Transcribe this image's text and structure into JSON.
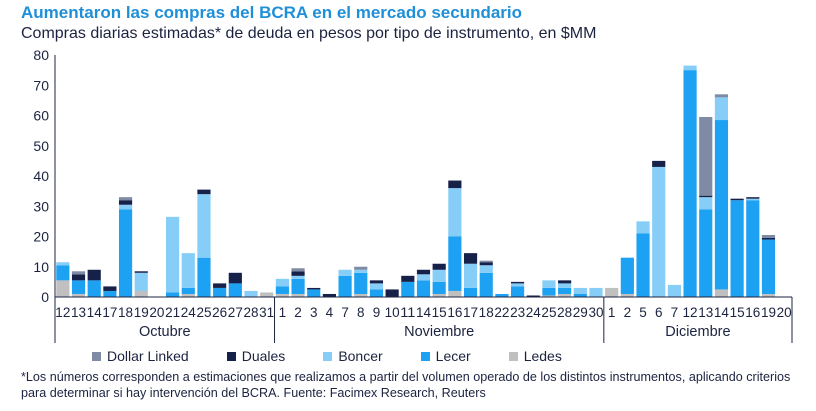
{
  "chart_data": {
    "type": "bar",
    "stacked": true,
    "title": "Aumentaron las compras del BCRA en el mercado secundario",
    "subtitle": "Compras diarias estimadas* de deuda en pesos por tipo de instrumento, en $MM",
    "ylim": [
      0,
      80
    ],
    "yticks": [
      0,
      10,
      20,
      30,
      40,
      50,
      60,
      70,
      80
    ],
    "groups": [
      {
        "label": "Octubre",
        "categories": [
          "12",
          "13",
          "14",
          "17",
          "18",
          "19",
          "20",
          "21",
          "24",
          "25",
          "26",
          "27",
          "28",
          "31"
        ]
      },
      {
        "label": "Noviembre",
        "categories": [
          "1",
          "2",
          "3",
          "4",
          "7",
          "8",
          "9",
          "10",
          "11",
          "14",
          "15",
          "16",
          "17",
          "18",
          "22",
          "23",
          "24",
          "25",
          "28",
          "29",
          "30"
        ]
      },
      {
        "label": "Diciembre",
        "categories": [
          "1",
          "2",
          "5",
          "6",
          "7",
          "12",
          "13",
          "14",
          "15",
          "16",
          "19",
          "20"
        ]
      }
    ],
    "series": [
      {
        "name": "Ledes",
        "color": "#c0c0c0",
        "values": [
          5.5,
          1,
          0,
          0,
          0,
          2,
          0,
          0,
          1,
          0,
          0,
          0,
          0,
          1.5,
          1,
          1,
          0,
          0,
          0,
          1,
          0,
          0,
          0,
          0,
          1,
          2,
          0,
          0,
          0,
          0,
          0,
          0.5,
          1,
          0,
          0,
          3,
          1,
          0,
          0,
          0,
          0,
          0,
          2.5,
          0,
          0,
          1,
          0
        ]
      },
      {
        "name": "Lecer",
        "color": "#1da1f2",
        "values": [
          5,
          4.5,
          5.5,
          2,
          29,
          0,
          0,
          1.5,
          2,
          13,
          3,
          4.5,
          0,
          0,
          2.5,
          5,
          2.5,
          0,
          7,
          7,
          2.5,
          0,
          5,
          5.5,
          4,
          18,
          3,
          8,
          1,
          3.5,
          0,
          2.5,
          2,
          1,
          0,
          0,
          12,
          21,
          0,
          0,
          75,
          29,
          56,
          32,
          32,
          18,
          0
        ]
      },
      {
        "name": "Boncer",
        "color": "#86cdf7",
        "values": [
          1,
          0,
          0,
          0,
          1.5,
          6,
          0,
          25,
          11.5,
          21,
          0,
          0,
          2,
          0,
          2.5,
          1,
          0,
          0,
          2,
          1,
          2,
          0,
          0,
          2,
          4,
          16,
          8,
          2.5,
          0,
          1,
          0,
          2.5,
          1.5,
          2,
          3,
          0,
          0,
          4,
          43,
          4,
          1.5,
          4,
          7.5,
          0,
          0.5,
          0,
          0
        ]
      },
      {
        "name": "Duales",
        "color": "#16214a",
        "values": [
          0,
          2,
          3.5,
          1.5,
          1.5,
          0.5,
          0,
          0,
          0,
          1.5,
          1.5,
          3.5,
          0,
          0,
          0,
          1.5,
          0.5,
          1,
          0,
          0,
          1,
          2.5,
          2,
          1.5,
          2,
          2.5,
          3.5,
          1,
          0,
          0.5,
          0.5,
          0,
          1,
          0,
          0,
          0,
          0,
          0,
          2,
          0,
          0,
          0.5,
          0,
          0.5,
          0.5,
          0.5,
          0
        ]
      },
      {
        "name": "Dollar Linked",
        "color": "#7f8aa4",
        "values": [
          0,
          1,
          0,
          0,
          1,
          0,
          0,
          0,
          0,
          0,
          0,
          0,
          0,
          0,
          0,
          1,
          0,
          0,
          0,
          1,
          0,
          0,
          0,
          0,
          0,
          0,
          0,
          0.5,
          0,
          0,
          0,
          0,
          0,
          0,
          0,
          0,
          0,
          0,
          0,
          0,
          0,
          26,
          1,
          0,
          0,
          1,
          0
        ]
      }
    ],
    "legend_order": [
      "Dollar Linked",
      "Duales",
      "Boncer",
      "Lecer",
      "Ledes"
    ]
  },
  "footnote": "*Los números corresponden a estimaciones que realizamos a partir del volumen operado de los distintos instrumentos, aplicando criterios para determinar si hay intervención del BCRA. Fuente: Facimex Research, Reuters"
}
